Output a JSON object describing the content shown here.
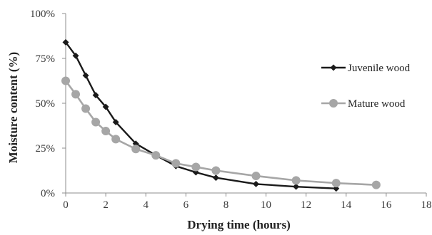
{
  "chart_data": {
    "type": "line",
    "title": "",
    "xlabel": "Drying time (hours)",
    "ylabel": "Moisture content (%)",
    "xlim": [
      0,
      18
    ],
    "ylim": [
      0,
      100
    ],
    "x_ticks": [
      0,
      2,
      4,
      6,
      8,
      10,
      12,
      14,
      16,
      18
    ],
    "x_tick_labels": [
      "0",
      "2",
      "4",
      "6",
      "8",
      "10",
      "12",
      "14",
      "16",
      "18"
    ],
    "y_ticks": [
      0,
      25,
      50,
      75,
      100
    ],
    "y_tick_labels": [
      "0%",
      "25%",
      "50%",
      "75%",
      "100%"
    ],
    "grid": false,
    "legend_position": "right",
    "series": [
      {
        "name": "Juvenile wood",
        "color": "#1a1a1a",
        "marker": "diamond",
        "x": [
          0,
          0.5,
          1,
          1.5,
          2,
          2.5,
          3.5,
          4.5,
          5.5,
          6.5,
          7.5,
          9.5,
          11.5,
          13.5
        ],
        "y": [
          84,
          76.5,
          65.5,
          54.5,
          48,
          39.5,
          27.5,
          21,
          15,
          11.5,
          8.5,
          5,
          3.5,
          2.5
        ]
      },
      {
        "name": "Mature wood",
        "color": "#a6a6a6",
        "marker": "circle",
        "x": [
          0,
          0.5,
          1,
          1.5,
          2,
          2.5,
          3.5,
          4.5,
          5.5,
          6.5,
          7.5,
          9.5,
          11.5,
          13.5,
          15.5
        ],
        "y": [
          62.5,
          55,
          47,
          39.5,
          34.5,
          30,
          24.5,
          21,
          16.5,
          14.5,
          12.5,
          9.5,
          7,
          5.5,
          4.5
        ]
      }
    ]
  }
}
